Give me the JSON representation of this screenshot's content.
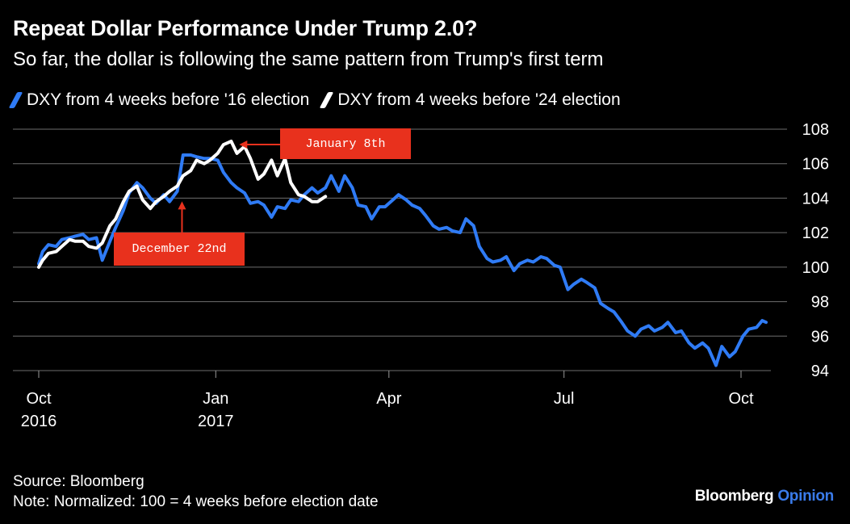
{
  "header": {
    "title": "Repeat Dollar Performance Under Trump 2.0?",
    "subtitle": "So far, the dollar is following the same pattern from Trump's first term"
  },
  "legend": [
    {
      "label": "DXY from 4 weeks before '16 election",
      "color": "#2f7bf5"
    },
    {
      "label": "DXY from 4 weeks before '24 election",
      "color": "#ffffff"
    }
  ],
  "annotations": [
    {
      "text": "January 8th",
      "color": "#e8311d"
    },
    {
      "text": "December 22nd",
      "color": "#e8311d"
    }
  ],
  "footer": {
    "source": "Source: Bloomberg",
    "note": "Note: Normalized: 100 = 4 weeks before election date"
  },
  "brand": {
    "name": "Bloomberg",
    "suffix": "Opinion"
  },
  "chart_data": {
    "type": "line",
    "title": "Repeat Dollar Performance Under Trump 2.0?",
    "subtitle": "So far, the dollar is following the same pattern from Trump's first term",
    "xlabel": "",
    "ylabel": "",
    "x_ticks": [
      {
        "date": "2016-10-01",
        "label": "Oct",
        "sublabel": "2016"
      },
      {
        "date": "2017-01-01",
        "label": "Jan",
        "sublabel": "2017"
      },
      {
        "date": "2017-04-01",
        "label": "Apr",
        "sublabel": ""
      },
      {
        "date": "2017-07-01",
        "label": "Jul",
        "sublabel": ""
      },
      {
        "date": "2017-10-01",
        "label": "Oct",
        "sublabel": ""
      }
    ],
    "xlim": [
      "2016-10-01",
      "2017-10-10"
    ],
    "ylim": [
      94,
      108
    ],
    "y_ticks": [
      94,
      96,
      98,
      100,
      102,
      104,
      106,
      108
    ],
    "y_axis_position": "right",
    "grid": true,
    "legend_position": "top-left",
    "series": [
      {
        "name": "DXY from 4 weeks before '16 election",
        "color": "#2f7bf5",
        "points": [
          [
            "2016-10-01",
            100.2
          ],
          [
            "2016-10-03",
            100.9
          ],
          [
            "2016-10-06",
            101.3
          ],
          [
            "2016-10-10",
            101.2
          ],
          [
            "2016-10-13",
            101.6
          ],
          [
            "2016-10-17",
            101.7
          ],
          [
            "2016-10-20",
            101.8
          ],
          [
            "2016-10-24",
            101.9
          ],
          [
            "2016-10-27",
            101.6
          ],
          [
            "2016-10-31",
            101.7
          ],
          [
            "2016-11-03",
            100.4
          ],
          [
            "2016-11-07",
            101.5
          ],
          [
            "2016-11-10",
            102.3
          ],
          [
            "2016-11-14",
            103.3
          ],
          [
            "2016-11-17",
            104.3
          ],
          [
            "2016-11-21",
            104.9
          ],
          [
            "2016-11-24",
            104.6
          ],
          [
            "2016-11-28",
            104.0
          ],
          [
            "2016-12-01",
            103.7
          ],
          [
            "2016-12-05",
            104.2
          ],
          [
            "2016-12-08",
            103.8
          ],
          [
            "2016-12-12",
            104.4
          ],
          [
            "2016-12-15",
            106.5
          ],
          [
            "2016-12-19",
            106.5
          ],
          [
            "2016-12-22",
            106.4
          ],
          [
            "2016-12-26",
            106.3
          ],
          [
            "2016-12-29",
            106.3
          ],
          [
            "2017-01-02",
            106.2
          ],
          [
            "2017-01-05",
            105.5
          ],
          [
            "2017-01-09",
            104.9
          ],
          [
            "2017-01-12",
            104.6
          ],
          [
            "2017-01-16",
            104.3
          ],
          [
            "2017-01-19",
            103.7
          ],
          [
            "2017-01-23",
            103.8
          ],
          [
            "2017-01-26",
            103.6
          ],
          [
            "2017-01-30",
            102.9
          ],
          [
            "2017-02-02",
            103.5
          ],
          [
            "2017-02-06",
            103.4
          ],
          [
            "2017-02-09",
            103.9
          ],
          [
            "2017-02-13",
            103.8
          ],
          [
            "2017-02-16",
            104.2
          ],
          [
            "2017-02-20",
            104.6
          ],
          [
            "2017-02-23",
            104.3
          ],
          [
            "2017-02-27",
            104.6
          ],
          [
            "2017-03-02",
            105.3
          ],
          [
            "2017-03-06",
            104.4
          ],
          [
            "2017-03-09",
            105.3
          ],
          [
            "2017-03-13",
            104.6
          ],
          [
            "2017-03-16",
            103.6
          ],
          [
            "2017-03-20",
            103.5
          ],
          [
            "2017-03-23",
            102.8
          ],
          [
            "2017-03-27",
            103.5
          ],
          [
            "2017-03-30",
            103.5
          ],
          [
            "2017-04-03",
            103.9
          ],
          [
            "2017-04-06",
            104.2
          ],
          [
            "2017-04-10",
            103.9
          ],
          [
            "2017-04-13",
            103.6
          ],
          [
            "2017-04-17",
            103.4
          ],
          [
            "2017-04-20",
            103.0
          ],
          [
            "2017-04-24",
            102.4
          ],
          [
            "2017-04-27",
            102.2
          ],
          [
            "2017-05-01",
            102.3
          ],
          [
            "2017-05-04",
            102.1
          ],
          [
            "2017-05-08",
            102.0
          ],
          [
            "2017-05-11",
            102.8
          ],
          [
            "2017-05-15",
            102.4
          ],
          [
            "2017-05-18",
            101.2
          ],
          [
            "2017-05-22",
            100.5
          ],
          [
            "2017-05-25",
            100.3
          ],
          [
            "2017-05-29",
            100.4
          ],
          [
            "2017-06-01",
            100.6
          ],
          [
            "2017-06-05",
            99.8
          ],
          [
            "2017-06-08",
            100.2
          ],
          [
            "2017-06-12",
            100.4
          ],
          [
            "2017-06-15",
            100.3
          ],
          [
            "2017-06-19",
            100.6
          ],
          [
            "2017-06-22",
            100.5
          ],
          [
            "2017-06-26",
            100.1
          ],
          [
            "2017-06-29",
            100.0
          ],
          [
            "2017-07-03",
            98.7
          ],
          [
            "2017-07-06",
            99.0
          ],
          [
            "2017-07-10",
            99.3
          ],
          [
            "2017-07-13",
            99.1
          ],
          [
            "2017-07-17",
            98.8
          ],
          [
            "2017-07-20",
            97.9
          ],
          [
            "2017-07-24",
            97.6
          ],
          [
            "2017-07-27",
            97.4
          ],
          [
            "2017-07-31",
            96.8
          ],
          [
            "2017-08-03",
            96.3
          ],
          [
            "2017-08-07",
            96.0
          ],
          [
            "2017-08-10",
            96.4
          ],
          [
            "2017-08-14",
            96.6
          ],
          [
            "2017-08-17",
            96.3
          ],
          [
            "2017-08-21",
            96.5
          ],
          [
            "2017-08-24",
            96.8
          ],
          [
            "2017-08-28",
            96.2
          ],
          [
            "2017-08-31",
            96.3
          ],
          [
            "2017-09-04",
            95.6
          ],
          [
            "2017-09-07",
            95.3
          ],
          [
            "2017-09-11",
            95.6
          ],
          [
            "2017-09-14",
            95.3
          ],
          [
            "2017-09-18",
            94.3
          ],
          [
            "2017-09-21",
            95.4
          ],
          [
            "2017-09-25",
            94.8
          ],
          [
            "2017-09-28",
            95.1
          ],
          [
            "2017-10-02",
            96.0
          ],
          [
            "2017-10-05",
            96.4
          ],
          [
            "2017-10-09",
            96.5
          ],
          [
            "2017-10-12",
            96.9
          ],
          [
            "2017-10-14",
            96.8
          ]
        ]
      },
      {
        "name": "DXY from 4 weeks before '24 election",
        "color": "#ffffff",
        "points": [
          [
            "2016-10-01",
            100.0
          ],
          [
            "2016-10-03",
            100.4
          ],
          [
            "2016-10-06",
            100.8
          ],
          [
            "2016-10-10",
            100.9
          ],
          [
            "2016-10-13",
            101.2
          ],
          [
            "2016-10-17",
            101.6
          ],
          [
            "2016-10-20",
            101.5
          ],
          [
            "2016-10-24",
            101.5
          ],
          [
            "2016-10-27",
            101.2
          ],
          [
            "2016-10-31",
            101.1
          ],
          [
            "2016-11-03",
            101.4
          ],
          [
            "2016-11-07",
            102.4
          ],
          [
            "2016-11-10",
            102.8
          ],
          [
            "2016-11-14",
            103.8
          ],
          [
            "2016-11-17",
            104.4
          ],
          [
            "2016-11-21",
            104.7
          ],
          [
            "2016-11-24",
            103.9
          ],
          [
            "2016-11-28",
            103.4
          ],
          [
            "2016-12-01",
            103.8
          ],
          [
            "2016-12-05",
            104.1
          ],
          [
            "2016-12-08",
            104.4
          ],
          [
            "2016-12-12",
            104.7
          ],
          [
            "2016-12-15",
            105.3
          ],
          [
            "2016-12-19",
            105.6
          ],
          [
            "2016-12-22",
            106.2
          ],
          [
            "2016-12-26",
            106.0
          ],
          [
            "2016-12-29",
            106.2
          ],
          [
            "2017-01-02",
            106.6
          ],
          [
            "2017-01-05",
            107.1
          ],
          [
            "2017-01-09",
            107.3
          ],
          [
            "2017-01-12",
            106.6
          ],
          [
            "2017-01-16",
            107.0
          ],
          [
            "2017-01-19",
            106.3
          ],
          [
            "2017-01-23",
            105.1
          ],
          [
            "2017-01-26",
            105.4
          ],
          [
            "2017-01-30",
            106.2
          ],
          [
            "2017-02-02",
            105.3
          ],
          [
            "2017-02-06",
            106.3
          ],
          [
            "2017-02-09",
            104.9
          ],
          [
            "2017-02-13",
            104.2
          ],
          [
            "2017-02-16",
            104.1
          ],
          [
            "2017-02-20",
            103.8
          ],
          [
            "2017-02-23",
            103.8
          ],
          [
            "2017-02-27",
            104.1
          ]
        ]
      }
    ],
    "annotations": [
      {
        "text": "January 8th",
        "date": "2017-01-09",
        "value": 107.3
      },
      {
        "text": "December 22nd",
        "date": "2016-12-22",
        "value": 104.0
      }
    ]
  }
}
